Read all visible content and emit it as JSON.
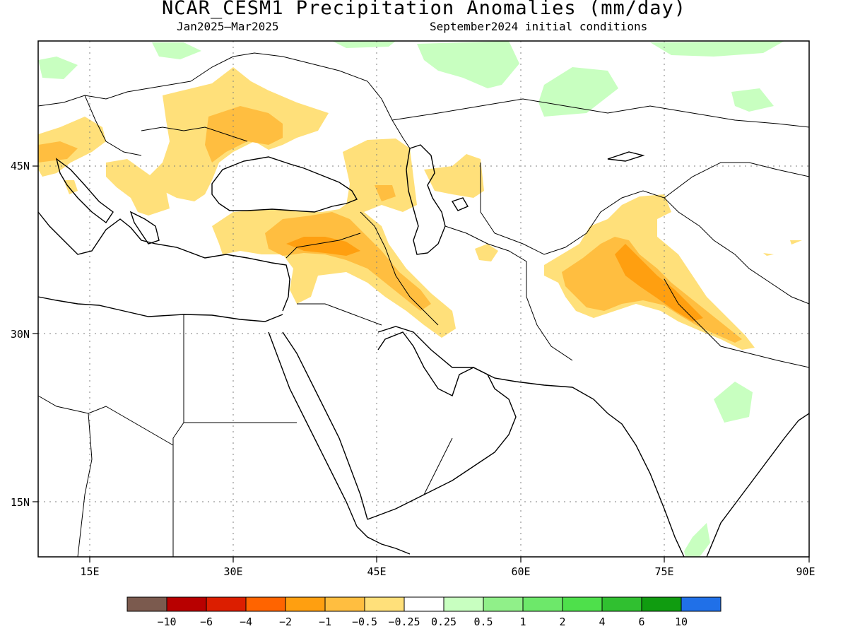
{
  "title": "NCAR_CESM1 Precipitation Anomalies (mm/day)",
  "period": "Jan2025–Mar2025",
  "init": "September2024 initial conditions",
  "lat_labels": [
    "45N",
    "30N",
    "15N"
  ],
  "lon_labels": [
    "15E",
    "30E",
    "45E",
    "60E",
    "75E",
    "90E"
  ],
  "legend": {
    "colors": [
      "#7b5a4e",
      "#b80000",
      "#dc1e00",
      "#ff6400",
      "#ff9f10",
      "#ffbe40",
      "#ffe07a",
      "#ffffff",
      "#c8ffc0",
      "#90f089",
      "#6de86a",
      "#4ee04b",
      "#30c030",
      "#109c10",
      "#2070e8"
    ],
    "labels": [
      "−10",
      "−6",
      "−4",
      "−2",
      "−1",
      "−0.5",
      "−0.25",
      "0.25",
      "0.5",
      "1",
      "2",
      "4",
      "6",
      "10"
    ]
  },
  "colors": {
    "dry_light": "#ffe07a",
    "dry_moderate": "#ffbe40",
    "dry_strong": "#ff9f10",
    "wet_light": "#c8ffc0",
    "coast": "#000000"
  }
}
